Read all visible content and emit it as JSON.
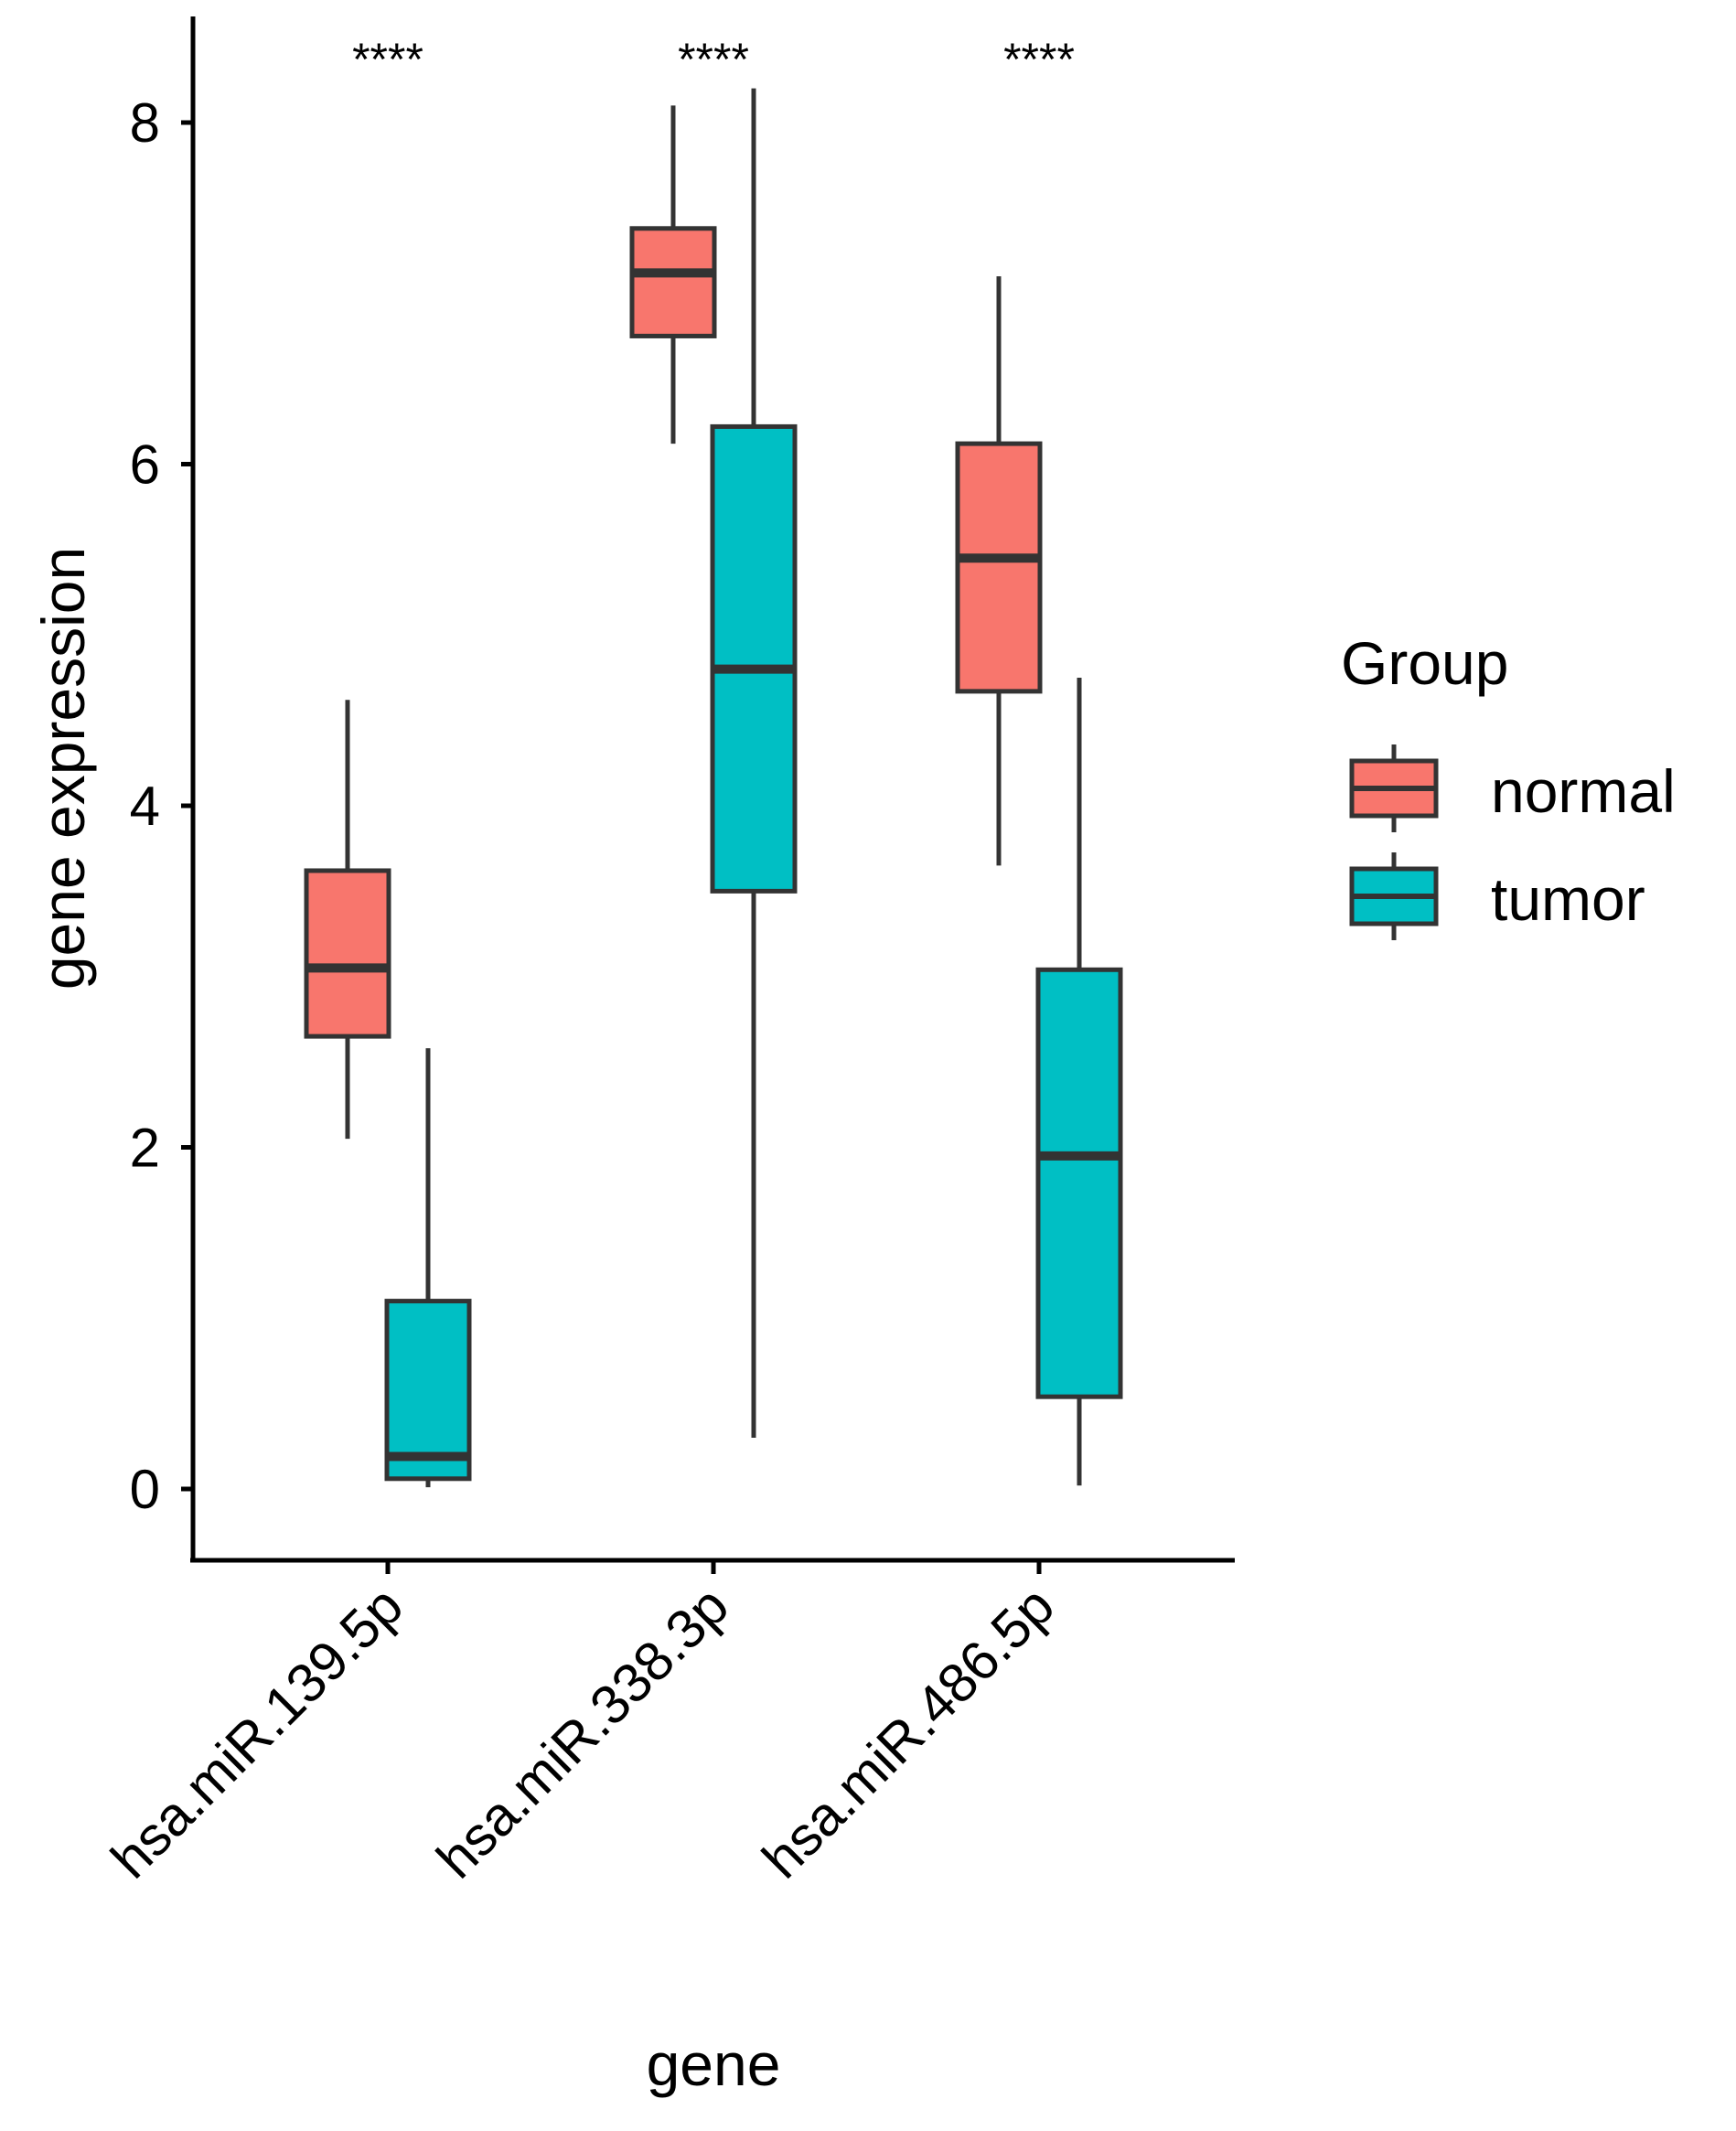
{
  "chart_data": {
    "type": "boxplot",
    "xlabel": "gene",
    "ylabel": "gene expression",
    "ylim": [
      -0.45,
      8.65
    ],
    "yticks": [
      0,
      2,
      4,
      6,
      8
    ],
    "categories": [
      "hsa.miR.139.5p",
      "hsa.miR.338.3p",
      "hsa.miR.486.5p"
    ],
    "significance": [
      "****",
      "****",
      "****"
    ],
    "legend": {
      "title": "Group",
      "position": "right",
      "entries": [
        {
          "name": "normal",
          "color": "#F8766D"
        },
        {
          "name": "tumor",
          "color": "#00BFC4"
        }
      ]
    },
    "series": [
      {
        "name": "normal",
        "color": "#F8766D",
        "boxes": [
          {
            "min": 2.05,
            "q1": 2.65,
            "median": 3.05,
            "q3": 3.62,
            "max": 4.62
          },
          {
            "min": 6.12,
            "q1": 6.75,
            "median": 7.12,
            "q3": 7.38,
            "max": 8.1
          },
          {
            "min": 3.65,
            "q1": 4.67,
            "median": 5.45,
            "q3": 6.12,
            "max": 7.1
          }
        ]
      },
      {
        "name": "tumor",
        "color": "#00BFC4",
        "boxes": [
          {
            "min": 0.01,
            "q1": 0.06,
            "median": 0.19,
            "q3": 1.1,
            "max": 2.58
          },
          {
            "min": 0.3,
            "q1": 3.5,
            "median": 4.8,
            "q3": 6.22,
            "max": 8.2
          },
          {
            "min": 0.02,
            "q1": 0.54,
            "median": 1.95,
            "q3": 3.04,
            "max": 4.75
          }
        ]
      }
    ]
  },
  "colors": {
    "outline": "#333333",
    "axis": "#000000"
  }
}
